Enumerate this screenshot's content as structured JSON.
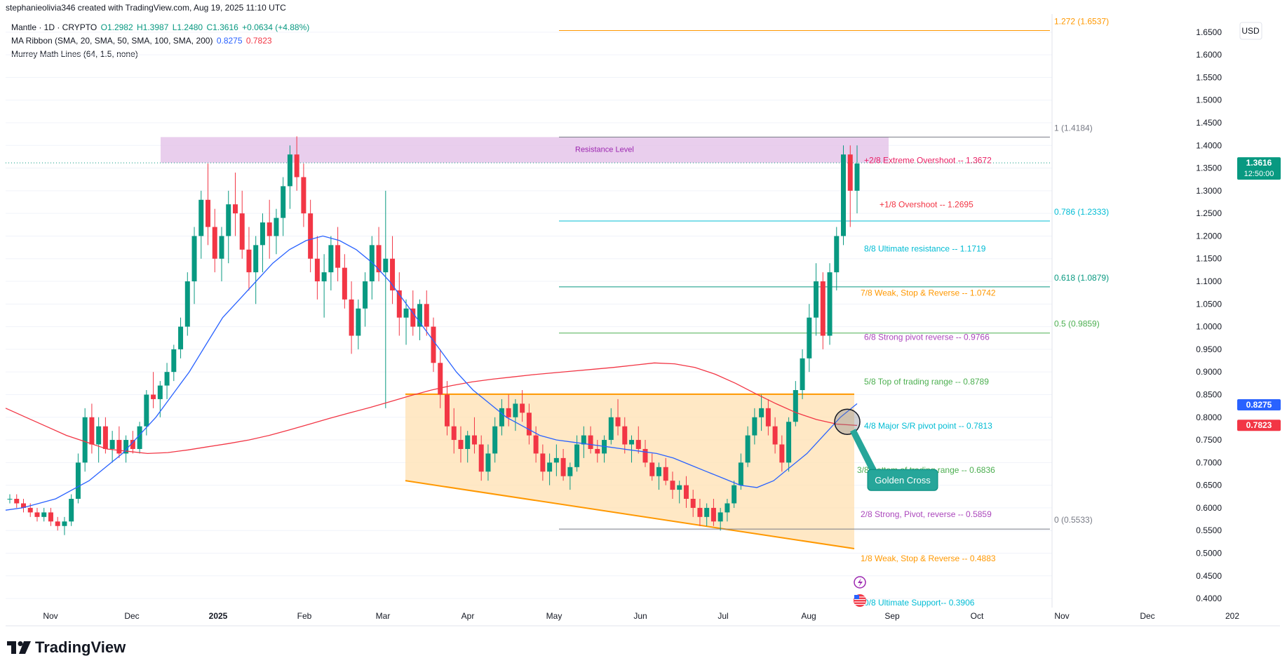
{
  "header": {
    "credit": "stephanieolivia346 created with TradingView.com, Aug 19, 2025 11:10 UTC"
  },
  "legend": {
    "symbol": "Mantle · 1D · CRYPTO",
    "open": "O1.2982",
    "high": "H1.3987",
    "low": "L1.2480",
    "close": "C1.3616",
    "change": "+0.0634 (+4.88%)",
    "ribbon_label": "MA Ribbon (SMA, 20, SMA, 50, SMA, 100, SMA, 200)",
    "ribbon_v1": "0.8275",
    "ribbon_v2": "0.7823",
    "murrey_label": "Murrey Math Lines (64, 1.5, none)"
  },
  "brand": {
    "name": "TradingView"
  },
  "colors": {
    "up": "#089981",
    "down": "#f23645",
    "sma50": "#2962ff",
    "sma200": "#f23645",
    "fib": "#2a9d8f",
    "channel": "#ff9800",
    "resistance_fill": "#e1bee7"
  },
  "icons": [
    "lightning-icon",
    "us-flag-icon",
    "tradingview-logo-icon"
  ],
  "chart_data": {
    "type": "candlestick",
    "currency": "USD",
    "ylim": [
      0.38,
      1.69
    ],
    "y_ticks": [
      "1.6500",
      "1.6000",
      "1.5500",
      "1.5000",
      "1.4500",
      "1.4000",
      "1.3500",
      "1.3000",
      "1.2500",
      "1.2000",
      "1.1500",
      "1.1000",
      "1.0500",
      "1.0000",
      "0.9500",
      "0.9000",
      "0.8500",
      "0.8000",
      "0.7500",
      "0.7000",
      "0.6500",
      "0.6000",
      "0.5500",
      "0.5000",
      "0.4500",
      "0.4000"
    ],
    "x_ticks": [
      "Nov",
      "Dec",
      "2025",
      "Feb",
      "Mar",
      "Apr",
      "May",
      "Jun",
      "Jul",
      "Aug",
      "Sep",
      "Oct",
      "Nov",
      "Dec",
      "202"
    ],
    "price_labels": [
      {
        "value": 1.3616,
        "text": "1.3616",
        "sub": "12:50:00",
        "color": "#089981"
      },
      {
        "value": 0.8275,
        "text": "0.8275",
        "color": "#2962ff"
      },
      {
        "value": 0.7823,
        "text": "0.7823",
        "color": "#f23645"
      }
    ],
    "fib_levels": [
      {
        "value": 1.6537,
        "text": "1.272 (1.6537)",
        "color": "#ff9800"
      },
      {
        "value": 1.4184,
        "text": "1 (1.4184)",
        "color": "#787b86"
      },
      {
        "value": 1.2333,
        "text": "0.786 (1.2333)",
        "color": "#00bcd4"
      },
      {
        "value": 1.0879,
        "text": "0.618 (1.0879)",
        "color": "#089981"
      },
      {
        "value": 0.9859,
        "text": "0.5 (0.9859)",
        "color": "#4caf50"
      },
      {
        "value": 0.5533,
        "text": "0 (0.5533)",
        "color": "#787b86"
      }
    ],
    "murrey_levels": [
      {
        "value": 1.3672,
        "text": "+2/8 Extreme Overshoot --  1.3672",
        "color": "#e91e63"
      },
      {
        "value": 1.2695,
        "text": "+1/8 Overshoot --  1.2695",
        "color": "#f23645"
      },
      {
        "value": 1.1719,
        "text": "8/8 Ultimate resistance --  1.1719",
        "color": "#00bcd4"
      },
      {
        "value": 1.0742,
        "text": "7/8 Weak, Stop & Reverse --  1.0742",
        "color": "#ff9800"
      },
      {
        "value": 0.9766,
        "text": "6/8 Strong pivot reverse --  0.9766",
        "color": "#ab47bc"
      },
      {
        "value": 0.8789,
        "text": "5/8 Top of trading range --  0.8789",
        "color": "#4caf50"
      },
      {
        "value": 0.7813,
        "text": "4/8 Major S/R pivot point --  0.7813",
        "color": "#00bcd4"
      },
      {
        "value": 0.6836,
        "text": "3/8 Bottom of trading range --  0.6836",
        "color": "#4caf50"
      },
      {
        "value": 0.5859,
        "text": "2/8 Strong, Pivot, reverse --  0.5859",
        "color": "#ab47bc"
      },
      {
        "value": 0.4883,
        "text": "1/8 Weak, Stop & Reverse --  0.4883",
        "color": "#ff9800"
      },
      {
        "value": 0.3906,
        "text": "0/8 Ultimate Support--  0.3906",
        "color": "#00bcd4"
      }
    ],
    "annotations": {
      "resistance_text": "Resistance Level",
      "resistance_top": 1.4184,
      "resistance_bottom": 1.3616,
      "golden_cross_text": "Golden Cross",
      "golden_cross_value": 0.79,
      "channel_top": 0.851,
      "channel_low_start": 0.66,
      "channel_low_end": 0.51
    },
    "ohlc": [
      [
        0.62,
        0.63,
        0.61,
        0.62
      ],
      [
        0.62,
        0.63,
        0.6,
        0.61
      ],
      [
        0.61,
        0.62,
        0.59,
        0.6
      ],
      [
        0.6,
        0.61,
        0.58,
        0.59
      ],
      [
        0.59,
        0.6,
        0.57,
        0.58
      ],
      [
        0.58,
        0.6,
        0.57,
        0.59
      ],
      [
        0.59,
        0.6,
        0.56,
        0.57
      ],
      [
        0.57,
        0.58,
        0.55,
        0.56
      ],
      [
        0.56,
        0.58,
        0.54,
        0.57
      ],
      [
        0.57,
        0.63,
        0.56,
        0.62
      ],
      [
        0.62,
        0.72,
        0.61,
        0.7
      ],
      [
        0.7,
        0.82,
        0.68,
        0.8
      ],
      [
        0.8,
        0.83,
        0.72,
        0.74
      ],
      [
        0.74,
        0.8,
        0.7,
        0.78
      ],
      [
        0.78,
        0.8,
        0.72,
        0.73
      ],
      [
        0.73,
        0.77,
        0.7,
        0.75
      ],
      [
        0.75,
        0.78,
        0.71,
        0.72
      ],
      [
        0.72,
        0.76,
        0.7,
        0.75
      ],
      [
        0.75,
        0.77,
        0.72,
        0.73
      ],
      [
        0.73,
        0.79,
        0.72,
        0.78
      ],
      [
        0.78,
        0.86,
        0.76,
        0.85
      ],
      [
        0.85,
        0.9,
        0.82,
        0.84
      ],
      [
        0.84,
        0.88,
        0.8,
        0.87
      ],
      [
        0.87,
        0.92,
        0.84,
        0.9
      ],
      [
        0.9,
        0.96,
        0.88,
        0.95
      ],
      [
        0.95,
        1.02,
        0.93,
        1.0
      ],
      [
        1.0,
        1.12,
        0.98,
        1.1
      ],
      [
        1.1,
        1.22,
        1.05,
        1.2
      ],
      [
        1.2,
        1.3,
        1.15,
        1.28
      ],
      [
        1.28,
        1.36,
        1.18,
        1.22
      ],
      [
        1.22,
        1.26,
        1.12,
        1.15
      ],
      [
        1.15,
        1.22,
        1.1,
        1.2
      ],
      [
        1.2,
        1.3,
        1.14,
        1.27
      ],
      [
        1.27,
        1.34,
        1.2,
        1.25
      ],
      [
        1.25,
        1.3,
        1.15,
        1.17
      ],
      [
        1.17,
        1.22,
        1.08,
        1.12
      ],
      [
        1.12,
        1.2,
        1.05,
        1.18
      ],
      [
        1.18,
        1.25,
        1.12,
        1.23
      ],
      [
        1.23,
        1.28,
        1.15,
        1.2
      ],
      [
        1.2,
        1.26,
        1.16,
        1.24
      ],
      [
        1.24,
        1.33,
        1.2,
        1.31
      ],
      [
        1.31,
        1.4,
        1.26,
        1.38
      ],
      [
        1.38,
        1.42,
        1.3,
        1.33
      ],
      [
        1.33,
        1.36,
        1.22,
        1.25
      ],
      [
        1.25,
        1.28,
        1.12,
        1.15
      ],
      [
        1.15,
        1.2,
        1.06,
        1.1
      ],
      [
        1.1,
        1.16,
        1.02,
        1.12
      ],
      [
        1.12,
        1.2,
        1.08,
        1.18
      ],
      [
        1.18,
        1.22,
        1.1,
        1.13
      ],
      [
        1.13,
        1.16,
        1.04,
        1.06
      ],
      [
        1.06,
        1.1,
        0.94,
        0.98
      ],
      [
        0.98,
        1.06,
        0.95,
        1.04
      ],
      [
        1.04,
        1.12,
        1.0,
        1.1
      ],
      [
        1.1,
        1.2,
        1.06,
        1.18
      ],
      [
        1.18,
        1.22,
        1.1,
        1.12
      ],
      [
        1.12,
        1.3,
        0.82,
        1.15
      ],
      [
        1.15,
        1.2,
        1.05,
        1.08
      ],
      [
        1.08,
        1.12,
        0.98,
        1.02
      ],
      [
        1.02,
        1.06,
        0.96,
        1.04
      ],
      [
        1.04,
        1.08,
        0.98,
        1.0
      ],
      [
        1.0,
        1.06,
        0.97,
        1.05
      ],
      [
        1.05,
        1.08,
        0.98,
        1.0
      ],
      [
        1.0,
        1.02,
        0.9,
        0.92
      ],
      [
        0.92,
        0.95,
        0.82,
        0.85
      ],
      [
        0.85,
        0.88,
        0.76,
        0.78
      ],
      [
        0.78,
        0.82,
        0.72,
        0.75
      ],
      [
        0.75,
        0.78,
        0.7,
        0.73
      ],
      [
        0.73,
        0.77,
        0.7,
        0.76
      ],
      [
        0.76,
        0.8,
        0.72,
        0.74
      ],
      [
        0.74,
        0.76,
        0.66,
        0.68
      ],
      [
        0.68,
        0.74,
        0.66,
        0.72
      ],
      [
        0.72,
        0.8,
        0.7,
        0.78
      ],
      [
        0.78,
        0.84,
        0.76,
        0.82
      ],
      [
        0.82,
        0.85,
        0.78,
        0.8
      ],
      [
        0.8,
        0.84,
        0.77,
        0.83
      ],
      [
        0.83,
        0.86,
        0.79,
        0.81
      ],
      [
        0.81,
        0.83,
        0.74,
        0.76
      ],
      [
        0.76,
        0.78,
        0.7,
        0.72
      ],
      [
        0.72,
        0.74,
        0.66,
        0.68
      ],
      [
        0.68,
        0.72,
        0.65,
        0.7
      ],
      [
        0.7,
        0.74,
        0.67,
        0.71
      ],
      [
        0.71,
        0.73,
        0.66,
        0.67
      ],
      [
        0.67,
        0.7,
        0.64,
        0.69
      ],
      [
        0.69,
        0.76,
        0.68,
        0.74
      ],
      [
        0.74,
        0.78,
        0.71,
        0.76
      ],
      [
        0.76,
        0.78,
        0.72,
        0.73
      ],
      [
        0.73,
        0.75,
        0.7,
        0.72
      ],
      [
        0.72,
        0.76,
        0.7,
        0.75
      ],
      [
        0.75,
        0.82,
        0.74,
        0.8
      ],
      [
        0.8,
        0.84,
        0.76,
        0.78
      ],
      [
        0.78,
        0.8,
        0.72,
        0.74
      ],
      [
        0.74,
        0.76,
        0.7,
        0.75
      ],
      [
        0.75,
        0.78,
        0.72,
        0.73
      ],
      [
        0.73,
        0.75,
        0.69,
        0.7
      ],
      [
        0.7,
        0.72,
        0.66,
        0.67
      ],
      [
        0.67,
        0.7,
        0.64,
        0.69
      ],
      [
        0.69,
        0.71,
        0.65,
        0.66
      ],
      [
        0.66,
        0.68,
        0.62,
        0.64
      ],
      [
        0.64,
        0.66,
        0.61,
        0.65
      ],
      [
        0.65,
        0.67,
        0.6,
        0.62
      ],
      [
        0.62,
        0.64,
        0.58,
        0.6
      ],
      [
        0.6,
        0.62,
        0.56,
        0.58
      ],
      [
        0.58,
        0.61,
        0.56,
        0.6
      ],
      [
        0.6,
        0.62,
        0.56,
        0.57
      ],
      [
        0.57,
        0.6,
        0.55,
        0.59
      ],
      [
        0.59,
        0.62,
        0.57,
        0.61
      ],
      [
        0.61,
        0.66,
        0.6,
        0.65
      ],
      [
        0.65,
        0.72,
        0.64,
        0.7
      ],
      [
        0.7,
        0.78,
        0.69,
        0.76
      ],
      [
        0.76,
        0.82,
        0.74,
        0.8
      ],
      [
        0.8,
        0.85,
        0.77,
        0.82
      ],
      [
        0.82,
        0.84,
        0.76,
        0.78
      ],
      [
        0.78,
        0.8,
        0.72,
        0.74
      ],
      [
        0.74,
        0.76,
        0.68,
        0.7
      ],
      [
        0.7,
        0.8,
        0.68,
        0.79
      ],
      [
        0.79,
        0.88,
        0.78,
        0.86
      ],
      [
        0.86,
        0.95,
        0.84,
        0.93
      ],
      [
        0.93,
        1.05,
        0.9,
        1.02
      ],
      [
        1.02,
        1.14,
        0.98,
        1.1
      ],
      [
        1.1,
        1.12,
        0.95,
        0.98
      ],
      [
        0.98,
        1.14,
        0.96,
        1.12
      ],
      [
        1.12,
        1.22,
        1.08,
        1.2
      ],
      [
        1.2,
        1.4,
        1.18,
        1.38
      ],
      [
        1.38,
        1.4,
        1.22,
        1.3
      ],
      [
        1.3,
        1.4,
        1.25,
        1.36
      ]
    ],
    "sma50": [
      0.595,
      0.6,
      0.61,
      0.62,
      0.64,
      0.66,
      0.69,
      0.72,
      0.76,
      0.8,
      0.85,
      0.9,
      0.96,
      1.02,
      1.06,
      1.1,
      1.14,
      1.17,
      1.19,
      1.2,
      1.19,
      1.17,
      1.14,
      1.1,
      1.05,
      1.0,
      0.95,
      0.9,
      0.86,
      0.83,
      0.8,
      0.78,
      0.76,
      0.75,
      0.745,
      0.74,
      0.735,
      0.73,
      0.725,
      0.72,
      0.71,
      0.695,
      0.68,
      0.665,
      0.65,
      0.645,
      0.66,
      0.69,
      0.72,
      0.76,
      0.8,
      0.83
    ],
    "sma200": [
      0.82,
      0.8,
      0.78,
      0.76,
      0.745,
      0.73,
      0.725,
      0.72,
      0.722,
      0.728,
      0.735,
      0.742,
      0.75,
      0.76,
      0.772,
      0.785,
      0.798,
      0.81,
      0.822,
      0.835,
      0.848,
      0.86,
      0.87,
      0.878,
      0.884,
      0.889,
      0.894,
      0.898,
      0.902,
      0.906,
      0.91,
      0.915,
      0.92,
      0.918,
      0.91,
      0.895,
      0.875,
      0.852,
      0.83,
      0.81,
      0.795,
      0.785,
      0.782
    ]
  }
}
